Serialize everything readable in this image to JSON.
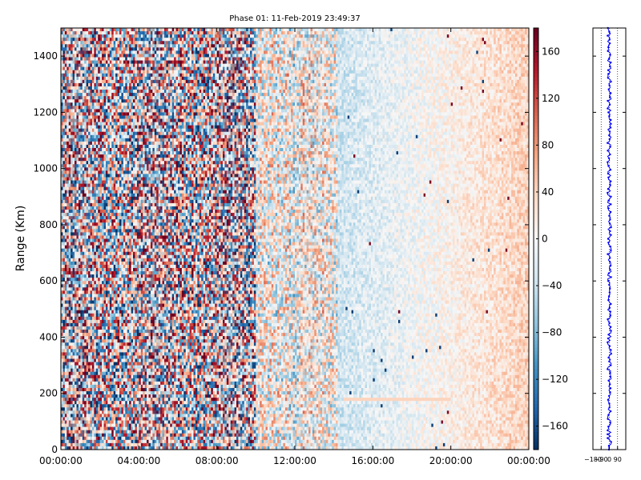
{
  "chart_data": [
    {
      "type": "heatmap",
      "title": "Phase 01: 11-Feb-2019 23:49:37",
      "ylabel": "Range (Km)",
      "xlabel": "",
      "x_ticks": [
        "00:00:00",
        "04:00:00",
        "08:00:00",
        "12:00:00",
        "16:00:00",
        "20:00:00",
        "00:00:00"
      ],
      "x_range_hours": [
        0,
        24
      ],
      "y_ticks": [
        0,
        200,
        400,
        600,
        800,
        1000,
        1200,
        1400
      ],
      "ylim": [
        0,
        1500
      ],
      "grid": false,
      "colormap": "RdBu_r",
      "colorbar": {
        "ticks": [
          160,
          120,
          80,
          40,
          0,
          -40,
          -80,
          -120,
          -160
        ],
        "tick_labels": [
          "160",
          "120",
          "80",
          "40",
          "0",
          "−40",
          "−80",
          "−120",
          "−160"
        ],
        "range": [
          -180,
          180
        ]
      },
      "regions": [
        {
          "from_hour": 0,
          "to_hour": 10,
          "description_level": "noise",
          "amplitude": 180
        },
        {
          "from_hour": 10,
          "to_hour": 14.2,
          "amplitude": 90
        },
        {
          "from_hour": 14.2,
          "to_hour": 24,
          "amplitude": 30,
          "trend": "blue-to-red"
        }
      ],
      "features": [
        {
          "range_km": 180,
          "from_hour": 14.5,
          "to_hour": 20,
          "value": 40
        }
      ]
    },
    {
      "type": "line",
      "x_ticks": [
        "−180",
        "−90",
        "0",
        "90"
      ],
      "xlim": [
        -180,
        180
      ],
      "ylim": [
        0,
        1500
      ],
      "series_color": "#0000ff",
      "center_value": 0,
      "spread": 20,
      "dotted_lines": [
        -180,
        -90,
        0,
        90
      ]
    }
  ],
  "colors": {
    "neg": "#053061",
    "pos": "#67001f",
    "line": "#0000ff"
  }
}
